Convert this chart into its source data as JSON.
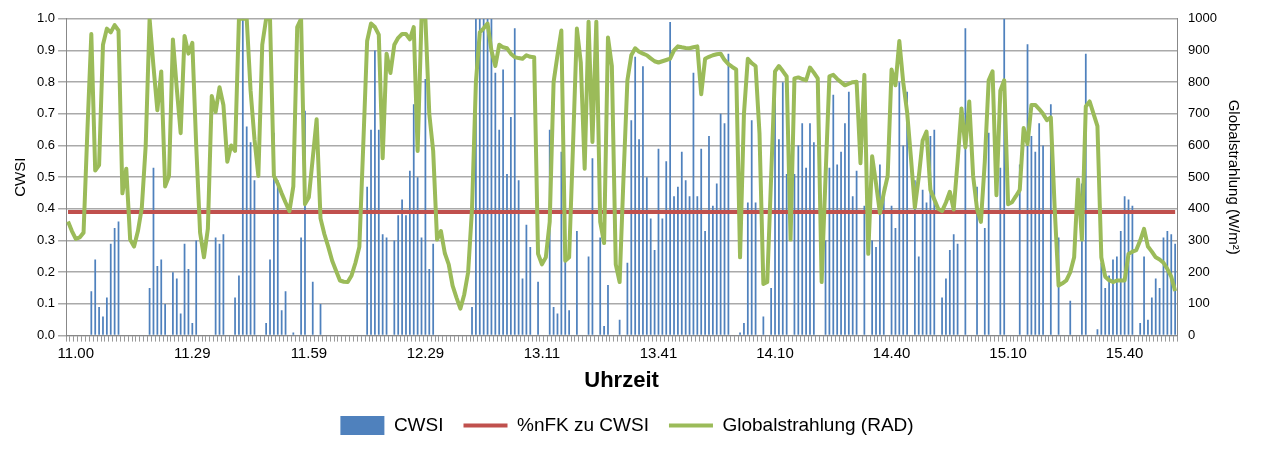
{
  "chart_data": {
    "type": "bar",
    "xlabel": "Uhrzeit",
    "ylabel": "CWSI",
    "y2label": "Globalstrahlung (W/m²)",
    "categories": [
      null,
      null,
      "11.00",
      null,
      null,
      null,
      null,
      null,
      null,
      null,
      null,
      null,
      null,
      null,
      null,
      null,
      null,
      null,
      null,
      null,
      null,
      null,
      null,
      null,
      null,
      null,
      null,
      null,
      null,
      null,
      null,
      null,
      "11.29",
      null,
      null,
      null,
      null,
      null,
      null,
      null,
      null,
      null,
      null,
      null,
      null,
      null,
      null,
      null,
      null,
      null,
      null,
      null,
      null,
      null,
      null,
      null,
      null,
      null,
      null,
      null,
      null,
      null,
      "11.59",
      null,
      null,
      null,
      null,
      null,
      null,
      null,
      null,
      null,
      null,
      null,
      null,
      null,
      null,
      null,
      null,
      null,
      null,
      null,
      null,
      null,
      null,
      null,
      null,
      null,
      null,
      null,
      null,
      null,
      "12.29",
      null,
      null,
      null,
      null,
      null,
      null,
      null,
      null,
      null,
      null,
      null,
      null,
      null,
      null,
      null,
      null,
      null,
      null,
      null,
      null,
      null,
      null,
      null,
      null,
      null,
      null,
      null,
      null,
      null,
      "13.11",
      null,
      null,
      null,
      null,
      null,
      null,
      null,
      null,
      null,
      null,
      null,
      null,
      null,
      null,
      null,
      null,
      null,
      null,
      null,
      null,
      null,
      null,
      null,
      null,
      null,
      null,
      null,
      null,
      null,
      "13.41",
      null,
      null,
      null,
      null,
      null,
      null,
      null,
      null,
      null,
      null,
      null,
      null,
      null,
      null,
      null,
      null,
      null,
      null,
      null,
      null,
      null,
      null,
      null,
      null,
      null,
      null,
      null,
      null,
      null,
      "14.10",
      null,
      null,
      null,
      null,
      null,
      null,
      null,
      null,
      null,
      null,
      null,
      null,
      null,
      null,
      null,
      null,
      null,
      null,
      null,
      null,
      null,
      null,
      null,
      null,
      null,
      null,
      null,
      null,
      null,
      "14.40",
      null,
      null,
      null,
      null,
      null,
      null,
      null,
      null,
      null,
      null,
      null,
      null,
      null,
      null,
      null,
      null,
      null,
      null,
      null,
      null,
      null,
      null,
      null,
      null,
      null,
      null,
      null,
      null,
      null,
      "15.10",
      null,
      null,
      null,
      null,
      null,
      null,
      null,
      null,
      null,
      null,
      null,
      null,
      null,
      null,
      null,
      null,
      null,
      null,
      null,
      null,
      null,
      null,
      null,
      null,
      null,
      null,
      null,
      null,
      null,
      "15.40",
      null,
      null,
      null,
      null,
      null,
      null,
      null,
      null,
      null,
      null,
      null,
      null,
      null
    ],
    "series": [
      {
        "name": "CWSI",
        "color": "#4f81bd",
        "values": [
          0,
          0,
          0,
          0,
          0,
          0,
          0.14,
          0.24,
          0.09,
          0.06,
          0.12,
          0.29,
          0.34,
          0.36,
          0,
          0,
          0,
          0,
          0,
          0,
          0,
          0.15,
          0.53,
          0.22,
          0.24,
          0.1,
          0,
          0.2,
          0.18,
          0.07,
          0.29,
          0.21,
          0.04,
          0.3,
          0,
          0,
          0,
          0,
          0.31,
          0.29,
          0.32,
          0,
          0,
          0.12,
          0.19,
          1.0,
          0.66,
          0.61,
          0.49,
          0,
          0,
          0.04,
          0.24,
          0.64,
          0.49,
          0.08,
          0.14,
          0,
          0.01,
          0,
          0.31,
          0.71,
          0,
          0.17,
          0,
          0.1,
          0,
          0,
          0,
          0,
          0,
          0,
          0,
          0,
          0,
          0,
          0,
          0.47,
          0.65,
          0.9,
          0.65,
          0.32,
          0.31,
          0,
          0.3,
          0.38,
          0.43,
          0.38,
          0.52,
          0.73,
          0.5,
          0.31,
          0.81,
          0.21,
          0.29,
          0,
          0,
          0,
          0,
          0,
          0,
          0,
          0,
          0,
          0.09,
          1.0,
          1.0,
          1.0,
          1.0,
          1.0,
          0.83,
          0.65,
          0.84,
          0.51,
          0.69,
          0.97,
          0.49,
          0.18,
          0.35,
          0.28,
          null,
          0.17,
          0,
          0,
          0.65,
          0.09,
          0.07,
          0.58,
          0.24,
          0.08,
          null,
          0.33,
          null,
          null,
          0.25,
          0.56,
          null,
          0.31,
          0.03,
          0.16,
          null,
          null,
          0.05,
          null,
          0.23,
          0.68,
          0.88,
          0.62,
          0.85,
          0.5,
          0.37,
          0.27,
          0.59,
          0.37,
          0.55,
          0.99,
          0.44,
          0.47,
          0.58,
          0.49,
          0.44,
          0.83,
          0.44,
          0.59,
          0.33,
          0.63,
          0.41,
          0.48,
          0.7,
          0.67,
          0.89,
          null,
          null,
          0.01,
          0.04,
          0.42,
          0.68,
          0.42,
          null,
          0.06,
          null,
          0.15,
          0.75,
          0.62,
          0.8,
          0.51,
          null,
          0.51,
          0.6,
          0.67,
          0.53,
          0.67,
          0.61,
          null,
          null,
          0.3,
          0.53,
          0.76,
          0.54,
          0.58,
          0.67,
          0.77,
          0.44,
          0.52,
          null,
          0.41,
          null,
          0.3,
          0.28,
          0.54,
          0.47,
          null,
          0.41,
          0.34,
          0.8,
          0.6,
          0.77,
          null,
          0.49,
          0.25,
          0.46,
          0.42,
          0.63,
          0.65,
          null,
          0.12,
          0.18,
          0.27,
          0.32,
          0.29,
          null,
          0.97,
          null,
          null,
          0.47,
          null,
          0.34,
          0.64,
          null,
          null,
          0.53,
          1.0,
          null,
          null,
          null,
          0.54,
          null,
          0.92,
          0.63,
          0.58,
          0.67,
          0.6,
          null,
          0.73,
          null,
          0.31,
          0,
          0,
          0.11,
          null,
          null,
          0.48,
          0.89,
          null,
          null,
          0.02,
          0.23,
          0.15,
          0.19,
          0.24,
          0.25,
          0.33,
          0.44,
          0.43,
          0.41,
          null,
          0.04,
          0.25,
          0.05,
          0.12,
          0.18,
          0.15,
          0.31,
          0.33,
          0.32,
          0.29
        ]
      },
      {
        "name": "%nFK zu CWSI",
        "type": "line",
        "color": "#c0504d",
        "values": [
          0.39,
          0.39,
          0.39,
          0.39,
          0.39,
          0.39,
          0.39,
          0.39,
          0.39,
          0.39,
          0.39,
          0.39,
          0.39,
          0.39,
          0.39,
          0.39,
          0.39,
          0.39,
          0.39,
          0.39,
          0.39,
          0.39,
          0.39,
          0.39,
          0.39,
          0.39,
          0.39,
          0.39,
          0.39,
          0.39,
          0.39,
          0.39,
          0.39,
          0.39,
          0.39,
          0.39,
          0.39,
          0.39,
          0.39,
          0.39,
          0.39,
          0.39,
          0.39,
          0.39,
          0.39,
          0.39,
          0.39,
          0.39,
          0.39,
          0.39,
          0.39,
          0.39,
          0.39,
          0.39,
          0.39,
          0.39,
          0.39,
          0.39,
          0.39,
          0.39,
          0.39,
          0.39,
          0.39,
          0.39,
          0.39,
          0.39,
          0.39,
          0.39,
          0.39,
          0.39,
          0.39,
          0.39,
          0.39,
          0.39,
          0.39,
          0.39,
          0.39,
          0.39,
          0.39,
          0.39,
          0.39,
          0.39,
          0.39,
          0.39,
          0.39,
          0.39,
          0.39,
          0.39,
          0.39,
          0.39,
          0.39,
          0.39,
          0.39,
          0.39,
          0.39,
          0.39,
          0.39,
          0.39,
          0.39,
          0.39,
          0.39,
          0.39,
          0.39,
          0.39,
          0.39,
          0.39,
          0.39,
          0.39,
          0.39,
          0.39,
          0.39,
          0.39,
          0.39,
          0.39,
          0.39,
          0.39,
          0.39,
          0.39,
          0.39,
          0.39,
          0.39,
          0.39,
          0.39,
          0.39,
          0.39,
          0.39,
          0.39,
          0.39,
          0.39,
          0.39,
          0.39,
          0.39,
          0.39,
          0.39,
          0.39,
          0.39,
          0.39,
          0.39,
          0.39,
          0.39,
          0.39,
          0.39,
          0.39,
          0.39,
          0.39,
          0.39,
          0.39,
          0.39,
          0.39,
          0.39,
          0.39,
          0.39,
          0.39,
          0.39,
          0.39,
          0.39,
          0.39,
          0.39,
          0.39,
          0.39,
          0.39,
          0.39,
          0.39,
          0.39,
          0.39,
          0.39,
          0.39,
          0.39,
          0.39,
          0.39,
          0.39,
          0.39,
          0.39,
          0.39,
          0.39,
          0.39,
          0.39,
          0.39,
          0.39,
          0.39,
          0.39,
          0.39,
          0.39,
          0.39,
          0.39,
          0.39,
          0.39,
          0.39,
          0.39,
          0.39,
          0.39,
          0.39,
          0.39,
          0.39,
          0.39,
          0.39,
          0.39,
          0.39,
          0.39,
          0.39,
          0.39,
          0.39,
          0.39,
          0.39,
          0.39,
          0.39,
          0.39,
          0.39,
          0.39,
          0.39,
          0.39,
          0.39,
          0.39,
          0.39,
          0.39,
          0.39,
          0.39,
          0.39,
          0.39,
          0.39,
          0.39,
          0.39,
          0.39,
          0.39,
          0.39,
          0.39,
          0.39,
          0.39,
          0.39,
          0.39,
          0.39,
          0.39,
          0.39,
          0.39,
          0.39,
          0.39,
          0.39,
          0.39,
          0.39,
          0.39,
          0.39,
          0.39,
          0.39,
          0.39,
          0.39,
          0.39,
          0.39,
          0.39,
          0.39,
          0.39,
          0.39,
          0.39,
          0.39,
          0.39,
          0.39,
          0.39,
          0.39,
          0.39,
          0.39,
          0.39,
          0.39,
          0.39,
          0.39,
          0.39,
          0.39,
          0.39,
          0.39,
          0.39,
          0.39,
          0.39,
          0.39,
          0.39,
          0.39,
          0.39,
          0.39,
          0.39,
          0.39,
          0.39,
          0.39,
          0.39,
          0.39,
          0.39,
          0.39,
          0.39,
          0.39,
          0.39
        ]
      },
      {
        "name": "Globalstrahlung (RAD)",
        "type": "line",
        "axis": "y2",
        "color": "#9bbb59",
        "values": [
          360,
          330,
          305,
          310,
          325,
          650,
          952,
          521,
          538,
          918,
          969,
          957,
          980,
          963,
          449,
          527,
          303,
          281,
          330,
          404,
          600,
          1000,
          850,
          711,
          834,
          471,
          504,
          935,
          780,
          639,
          946,
          890,
          924,
          600,
          325,
          247,
          337,
          756,
          706,
          784,
          728,
          549,
          600,
          583,
          1000,
          1000,
          1000,
          773,
          620,
          504,
          918,
          1000,
          1000,
          504,
          480,
          449,
          420,
          393,
          471,
          974,
          1000,
          415,
          437,
          560,
          683,
          370,
          320,
          280,
          236,
          205,
          174,
          170,
          169,
          190,
          230,
          280,
          600,
          930,
          985,
          974,
          950,
          560,
          890,
          829,
          918,
          940,
          952,
          952,
          935,
          974,
          583,
          1000,
          1000,
          700,
          583,
          303,
          330,
          260,
          225,
          158,
          120,
          85,
          130,
          200,
          400,
          800,
          957,
          970,
          985,
          900,
          851,
          918,
          910,
          907,
          890,
          879,
          876,
          874,
          885,
          880,
          879,
          258,
          225,
          247,
          359,
          800,
          885,
          963,
          236,
          247,
          600,
          969,
          862,
          527,
          991,
          611,
          991,
          359,
          292,
          941,
          851,
          225,
          169,
          500,
          806,
          885,
          907,
          896,
          890,
          885,
          875,
          866,
          862,
          866,
          870,
          874,
          900,
          913,
          910,
          908,
          907,
          910,
          913,
          762,
          874,
          880,
          885,
          888,
          890,
          870,
          857,
          848,
          840,
          247,
          700,
          874,
          860,
          851,
          639,
          163,
          169,
          500,
          834,
          851,
          835,
          818,
          303,
          812,
          815,
          810,
          806,
          846,
          830,
          812,
          169,
          500,
          818,
          823,
          810,
          800,
          790,
          795,
          800,
          801,
          544,
          823,
          258,
          566,
          480,
          387,
          450,
          504,
          840,
          790,
          930,
          800,
          706,
          560,
          404,
          500,
          616,
          644,
          460,
          430,
          400,
          393,
          420,
          454,
          398,
          550,
          717,
          594,
          739,
          504,
          400,
          359,
          549,
          806,
          834,
          443,
          773,
          806,
          415,
          421,
          440,
          460,
          655,
          605,
          728,
          728,
          715,
          700,
          680,
          689,
          400,
          158,
          165,
          174,
          200,
          247,
          493,
          303,
          723,
          739,
          700,
          661,
          247,
          186,
          175,
          169,
          174,
          174,
          174,
          258,
          265,
          270,
          300,
          337,
          281,
          265,
          247,
          240,
          230,
          210,
          186,
          141
        ]
      }
    ],
    "ylim": [
      0,
      1
    ],
    "yticks": [
      {
        "value": 0,
        "label": "0.0"
      },
      {
        "value": 0.1,
        "label": "0.1"
      },
      {
        "value": 0.2,
        "label": "0.2"
      },
      {
        "value": 0.3,
        "label": "0.3"
      },
      {
        "value": 0.4,
        "label": "0.4"
      },
      {
        "value": 0.5,
        "label": "0.5"
      },
      {
        "value": 0.6,
        "label": "0.6"
      },
      {
        "value": 0.7,
        "label": "0.7"
      },
      {
        "value": 0.8,
        "label": "0.8"
      },
      {
        "value": 0.9,
        "label": "0.9"
      },
      {
        "value": 1,
        "label": "1.0"
      }
    ],
    "y2lim": [
      0,
      1000
    ],
    "y2ticks": [
      0,
      100,
      200,
      300,
      400,
      500,
      600,
      700,
      800,
      900,
      1000
    ],
    "grid": "y",
    "legend": "bottom",
    "marker": "none",
    "line_style": "solid"
  }
}
